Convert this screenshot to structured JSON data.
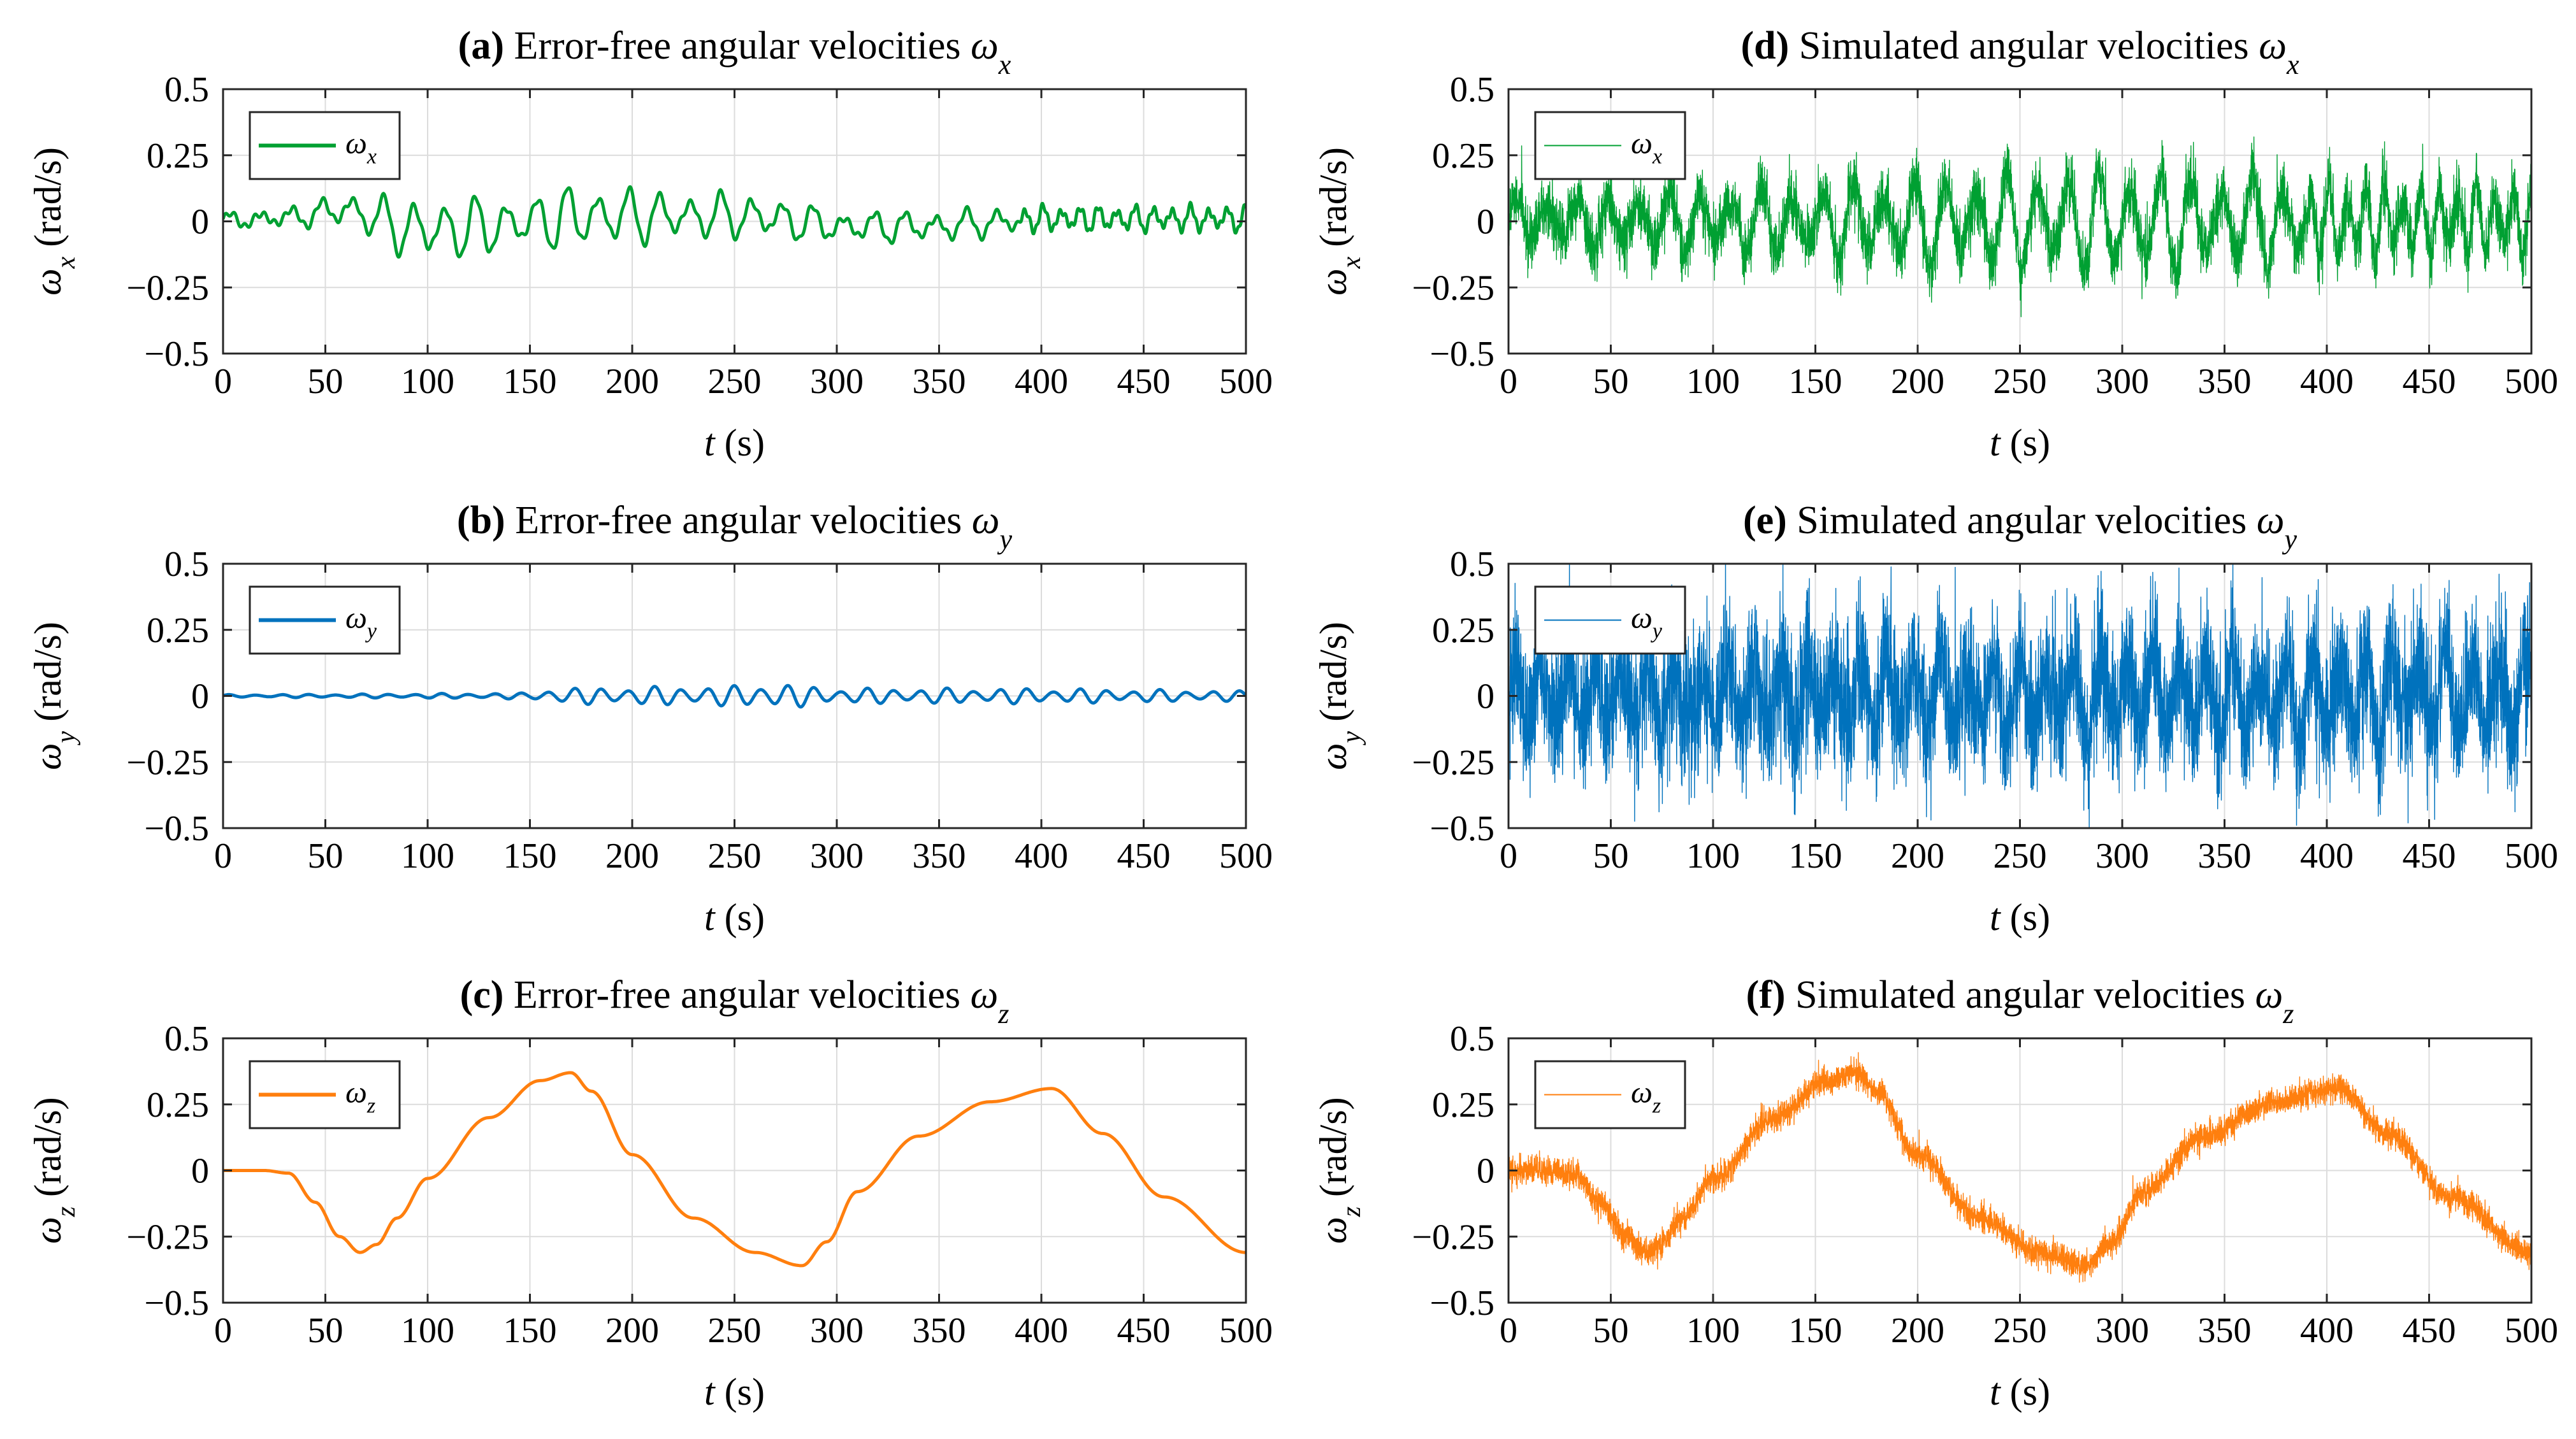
{
  "figure": {
    "xlabel_var": "t",
    "xlabel_unit": " (s)",
    "ylabel_unit": "(rad/s)"
  },
  "chart_data": [
    {
      "id": "a",
      "type": "line",
      "panel_tag": "(a)",
      "title_text": " Error-free angular velocities ",
      "symbol": "ω",
      "sub": "x",
      "color": "#00a032",
      "noisy": false,
      "xlim": [
        0,
        500
      ],
      "ylim": [
        -0.5,
        0.5
      ],
      "xticks": [
        0,
        50,
        100,
        150,
        200,
        250,
        300,
        350,
        400,
        450,
        500
      ],
      "yticks": [
        -0.5,
        -0.25,
        0,
        0.25,
        0.5
      ],
      "ytick_labels": [
        "−0.5",
        "−0.25",
        "0",
        "0.25",
        "0.5"
      ],
      "legend": "ω_x",
      "envelope": {
        "t": [
          0,
          40,
          80,
          100,
          120,
          150,
          170,
          200,
          230,
          260,
          300,
          350,
          400,
          500
        ],
        "amp": [
          0.03,
          0.04,
          0.1,
          0.13,
          0.12,
          0.1,
          0.13,
          0.11,
          0.09,
          0.09,
          0.06,
          0.06,
          0.05,
          0.05
        ]
      },
      "bias": {
        "t": [
          0,
          40,
          60,
          90,
          110,
          130,
          150,
          180,
          220,
          260,
          300,
          350,
          400,
          500
        ],
        "v": [
          0,
          0.02,
          0.05,
          -0.03,
          -0.03,
          -0.02,
          0,
          0.02,
          0.02,
          0.02,
          -0.02,
          -0.02,
          0.01,
          0.01
        ]
      }
    },
    {
      "id": "b",
      "type": "line",
      "panel_tag": "(b)",
      "title_text": " Error-free angular velocities ",
      "symbol": "ω",
      "sub": "y",
      "color": "#0072bd",
      "noisy": false,
      "xlim": [
        0,
        500
      ],
      "ylim": [
        -0.5,
        0.5
      ],
      "xticks": [
        0,
        50,
        100,
        150,
        200,
        250,
        300,
        350,
        400,
        450,
        500
      ],
      "yticks": [
        -0.5,
        -0.25,
        0,
        0.25,
        0.5
      ],
      "ytick_labels": [
        "−0.5",
        "−0.25",
        "0",
        "0.25",
        "0.5"
      ],
      "legend": "ω_y",
      "envelope": {
        "t": [
          0,
          80,
          150,
          160,
          200,
          250,
          270,
          300,
          350,
          400,
          450,
          500
        ],
        "amp": [
          0.005,
          0.008,
          0.012,
          0.03,
          0.035,
          0.04,
          0.05,
          0.03,
          0.03,
          0.03,
          0.025,
          0.02
        ]
      },
      "bias": {
        "t": [
          0,
          500
        ],
        "v": [
          0,
          0
        ]
      }
    },
    {
      "id": "c",
      "type": "line",
      "panel_tag": "(c)",
      "title_text": " Error-free angular velocities ",
      "symbol": "ω",
      "sub": "z",
      "color": "#ff7f0e",
      "noisy": false,
      "xlim": [
        0,
        500
      ],
      "ylim": [
        -0.5,
        0.5
      ],
      "xticks": [
        0,
        50,
        100,
        150,
        200,
        250,
        300,
        350,
        400,
        450,
        500
      ],
      "yticks": [
        -0.5,
        -0.25,
        0,
        0.25,
        0.5
      ],
      "ytick_labels": [
        "−0.5",
        "−0.25",
        "0",
        "0.25",
        "0.5"
      ],
      "legend": "ω_z",
      "x": [
        0,
        20,
        32,
        45,
        57,
        67,
        75,
        85,
        100,
        130,
        155,
        170,
        180,
        200,
        230,
        260,
        283,
        295,
        310,
        340,
        375,
        405,
        430,
        460,
        500
      ],
      "y": [
        0,
        0,
        -0.01,
        -0.12,
        -0.25,
        -0.31,
        -0.28,
        -0.18,
        -0.03,
        0.2,
        0.34,
        0.37,
        0.3,
        0.06,
        -0.18,
        -0.31,
        -0.36,
        -0.27,
        -0.08,
        0.13,
        0.26,
        0.31,
        0.14,
        -0.1,
        -0.31
      ]
    },
    {
      "id": "d",
      "type": "line",
      "panel_tag": "(d)",
      "title_text": " Simulated angular velocities ",
      "symbol": "ω",
      "sub": "x",
      "color": "#00a032",
      "noisy": true,
      "xlim": [
        0,
        500
      ],
      "ylim": [
        -0.5,
        0.5
      ],
      "xticks": [
        0,
        50,
        100,
        150,
        200,
        250,
        300,
        350,
        400,
        450,
        500
      ],
      "yticks": [
        -0.5,
        -0.25,
        0,
        0.25,
        0.5
      ],
      "ytick_labels": [
        "−0.5",
        "−0.25",
        "0",
        "0.25",
        "0.5"
      ],
      "legend": "ω_x",
      "noise_std": 0.055,
      "envelope": {
        "t": [
          0,
          50,
          100,
          200,
          280,
          300,
          400,
          500
        ],
        "amp": [
          0.08,
          0.1,
          0.14,
          0.16,
          0.22,
          0.2,
          0.16,
          0.13
        ]
      },
      "bias": {
        "t": [
          0,
          500
        ],
        "v": [
          0,
          0
        ]
      }
    },
    {
      "id": "e",
      "type": "line",
      "panel_tag": "(e)",
      "title_text": " Simulated angular velocities ",
      "symbol": "ω",
      "sub": "y",
      "color": "#0072bd",
      "noisy": true,
      "xlim": [
        0,
        500
      ],
      "ylim": [
        -0.5,
        0.5
      ],
      "xticks": [
        0,
        50,
        100,
        150,
        200,
        250,
        300,
        350,
        400,
        450,
        500
      ],
      "yticks": [
        -0.5,
        -0.25,
        0,
        0.25,
        0.5
      ],
      "ytick_labels": [
        "−0.5",
        "−0.25",
        "0",
        "0.25",
        "0.5"
      ],
      "legend": "ω_y",
      "noise_std": 0.13,
      "envelope": {
        "t": [
          0,
          100,
          200,
          300,
          400,
          500
        ],
        "amp": [
          0.12,
          0.14,
          0.15,
          0.17,
          0.18,
          0.18
        ]
      },
      "bias": {
        "t": [
          0,
          500
        ],
        "v": [
          0,
          0
        ]
      }
    },
    {
      "id": "f",
      "type": "line",
      "panel_tag": "(f)",
      "title_text": " Simulated angular velocities ",
      "symbol": "ω",
      "sub": "z",
      "color": "#ff7f0e",
      "noisy": true,
      "xlim": [
        0,
        500
      ],
      "ylim": [
        -0.5,
        0.5
      ],
      "xticks": [
        0,
        50,
        100,
        150,
        200,
        250,
        300,
        350,
        400,
        450,
        500
      ],
      "yticks": [
        -0.5,
        -0.25,
        0,
        0.25,
        0.5
      ],
      "ytick_labels": [
        "−0.5",
        "−0.25",
        "0",
        "0.25",
        "0.5"
      ],
      "legend": "ω_z",
      "noise_std": 0.025,
      "x": [
        0,
        20,
        32,
        45,
        57,
        67,
        75,
        85,
        100,
        130,
        155,
        170,
        180,
        200,
        230,
        260,
        283,
        295,
        310,
        340,
        375,
        405,
        430,
        460,
        500
      ],
      "y": [
        0,
        0,
        -0.01,
        -0.12,
        -0.25,
        -0.31,
        -0.28,
        -0.18,
        -0.03,
        0.2,
        0.34,
        0.37,
        0.3,
        0.06,
        -0.18,
        -0.31,
        -0.36,
        -0.27,
        -0.08,
        0.13,
        0.26,
        0.31,
        0.14,
        -0.1,
        -0.31
      ]
    }
  ]
}
